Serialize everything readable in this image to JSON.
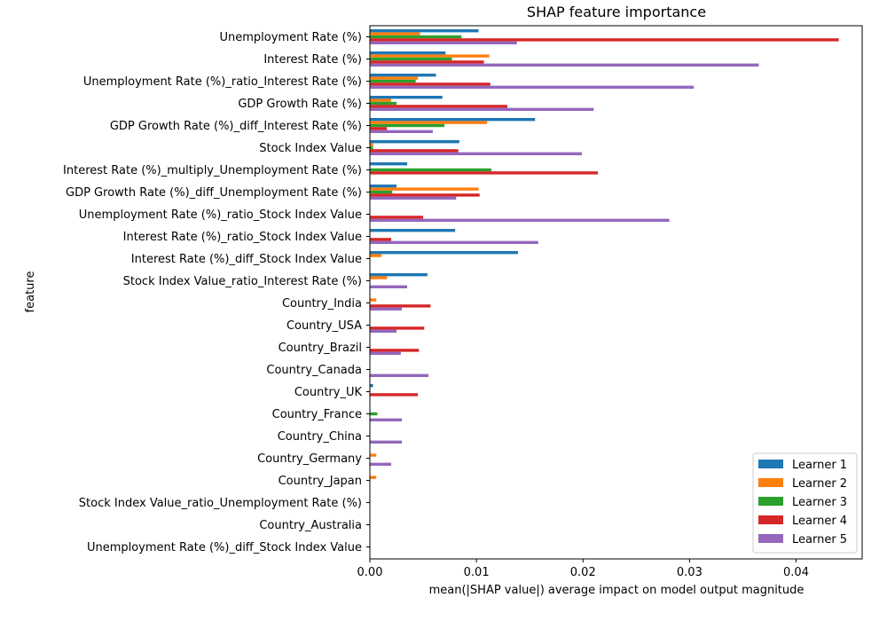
{
  "chart_data": {
    "type": "bar",
    "orientation": "horizontal",
    "title": "SHAP feature importance",
    "xlabel": "mean(|SHAP value|) average impact on model output magnitude",
    "ylabel": "feature",
    "xlim": [
      0,
      0.0462
    ],
    "xticks": [
      "0.00",
      "0.01",
      "0.02",
      "0.03",
      "0.04"
    ],
    "xtick_values": [
      0,
      0.01,
      0.02,
      0.03,
      0.04
    ],
    "grid": false,
    "legend_position": "lower-right",
    "categories": [
      "Unemployment Rate (%)",
      "Interest Rate (%)",
      "Unemployment Rate (%)_ratio_Interest Rate (%)",
      "GDP Growth Rate (%)",
      "GDP Growth Rate (%)_diff_Interest Rate (%)",
      "Stock Index Value",
      "Interest Rate (%)_multiply_Unemployment Rate (%)",
      "GDP Growth Rate (%)_diff_Unemployment Rate (%)",
      "Unemployment Rate (%)_ratio_Stock Index Value",
      "Interest Rate (%)_ratio_Stock Index Value",
      "Interest Rate (%)_diff_Stock Index Value",
      "Stock Index Value_ratio_Interest Rate (%)",
      "Country_India",
      "Country_USA",
      "Country_Brazil",
      "Country_Canada",
      "Country_UK",
      "Country_France",
      "Country_China",
      "Country_Germany",
      "Country_Japan",
      "Stock Index Value_ratio_Unemployment Rate (%)",
      "Country_Australia",
      "Unemployment Rate (%)_diff_Stock Index Value"
    ],
    "series": [
      {
        "name": "Learner 1",
        "color": "#1f77b4",
        "values": [
          0.0102,
          0.0071,
          0.0062,
          0.0068,
          0.0155,
          0.0084,
          0.0035,
          0.0025,
          0.0,
          0.008,
          0.0139,
          0.0054,
          0.0,
          0.0,
          0.0,
          0.0,
          0.0003,
          0.0,
          0.0,
          0.0,
          0.0,
          0.0,
          0.0,
          0.0
        ]
      },
      {
        "name": "Learner 2",
        "color": "#ff7f0e",
        "values": [
          0.0047,
          0.0112,
          0.0045,
          0.002,
          0.011,
          0.0003,
          0.0,
          0.0102,
          0.0,
          0.0,
          0.0011,
          0.0016,
          0.0006,
          0.0,
          0.0,
          0.0,
          0.0,
          0.0,
          0.0,
          0.0006,
          0.0006,
          0.0,
          0.0,
          0.0
        ]
      },
      {
        "name": "Learner 3",
        "color": "#2ca02c",
        "values": [
          0.0086,
          0.0077,
          0.0043,
          0.0025,
          0.007,
          0.0003,
          0.0114,
          0.0021,
          0.0,
          0.0,
          0.0,
          0.0,
          0.0,
          0.0,
          0.0,
          0.0,
          0.0,
          0.0007,
          0.0,
          0.0,
          0.0,
          0.0,
          0.0,
          0.0
        ]
      },
      {
        "name": "Learner 4",
        "color": "#d62728",
        "values": [
          0.044,
          0.0107,
          0.0113,
          0.0129,
          0.0016,
          0.0083,
          0.0214,
          0.0103,
          0.005,
          0.002,
          0.0,
          0.0,
          0.0057,
          0.0051,
          0.0046,
          0.0,
          0.0045,
          0.0,
          0.0,
          0.0,
          0.0,
          0.0,
          0.0,
          0.0
        ]
      },
      {
        "name": "Learner 5",
        "color": "#9467bd",
        "values": [
          0.0138,
          0.0365,
          0.0304,
          0.021,
          0.0059,
          0.0199,
          0.0,
          0.0081,
          0.0281,
          0.0158,
          0.0,
          0.0035,
          0.003,
          0.0025,
          0.0029,
          0.0055,
          0.0,
          0.003,
          0.003,
          0.002,
          0.0,
          0.0,
          0.0,
          0.0
        ]
      }
    ]
  }
}
